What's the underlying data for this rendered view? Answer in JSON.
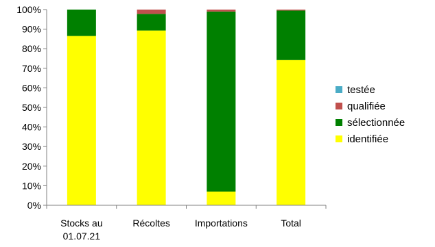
{
  "chart_data": {
    "type": "bar",
    "stacked": true,
    "categories": [
      [
        "Stocks au",
        "01.07.21"
      ],
      [
        "Récoltes"
      ],
      [
        "Importations"
      ],
      [
        "Total"
      ]
    ],
    "series": [
      {
        "name": "identifiée",
        "color": "#FFFF00",
        "values": [
          86.5,
          89.3,
          7.0,
          74.2
        ]
      },
      {
        "name": "sélectionnée",
        "color": "#008000",
        "values": [
          13.5,
          8.5,
          92.0,
          25.3
        ]
      },
      {
        "name": "qualifiée",
        "color": "#C0504D",
        "values": [
          0.0,
          2.2,
          1.0,
          0.5
        ]
      },
      {
        "name": "testée",
        "color": "#4BACC6",
        "values": [
          0.0,
          0.0,
          0.0,
          0.0
        ]
      }
    ],
    "legend_order": [
      "testée",
      "qualifiée",
      "sélectionnée",
      "identifiée"
    ],
    "y_ticks": [
      "0%",
      "10%",
      "20%",
      "30%",
      "40%",
      "50%",
      "60%",
      "70%",
      "80%",
      "90%",
      "100%"
    ],
    "ylim": [
      0,
      100
    ],
    "grid": false,
    "legend_position": "right"
  }
}
